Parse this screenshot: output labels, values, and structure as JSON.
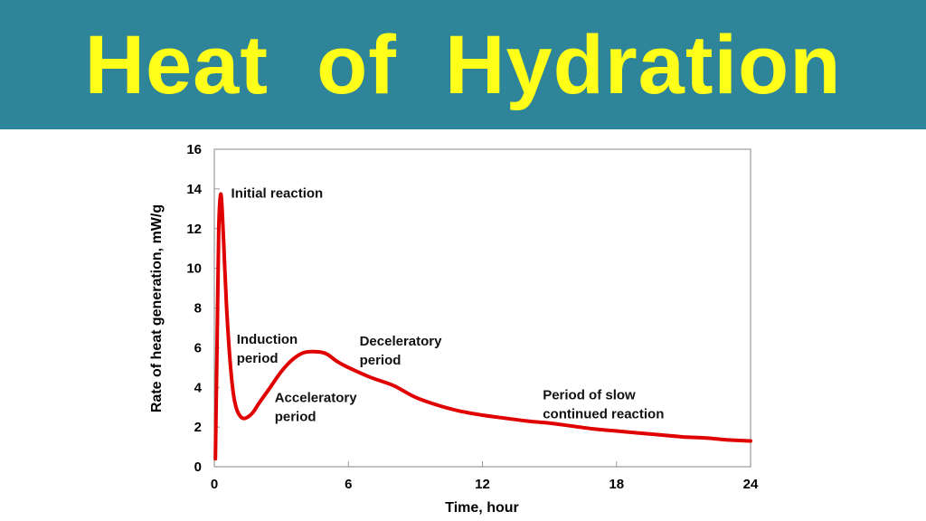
{
  "header": {
    "title": "Heat  of  Hydration",
    "background": "#2e8498",
    "text_color": "#ffff1a"
  },
  "chart_data": {
    "type": "line",
    "title": "",
    "xlabel": "Time, hour",
    "ylabel": "Rate of heat generation, mW/g",
    "xlim": [
      0,
      24
    ],
    "ylim": [
      0,
      16
    ],
    "xticks": [
      0,
      6,
      12,
      18,
      24
    ],
    "yticks": [
      0,
      2,
      4,
      6,
      8,
      10,
      12,
      14,
      16
    ],
    "grid": false,
    "series": [
      {
        "color": "#e00000",
        "x": [
          0.05,
          0.12,
          0.2,
          0.28,
          0.35,
          0.45,
          0.55,
          0.7,
          0.85,
          1.0,
          1.2,
          1.4,
          1.7,
          2.0,
          2.5,
          3.0,
          3.5,
          4.0,
          4.5,
          5.0,
          5.5,
          6.0,
          7.0,
          8.0,
          9.0,
          10.0,
          11.0,
          12.0,
          13.0,
          14.0,
          15.0,
          16.0,
          17.0,
          18.0,
          19.0,
          20.0,
          21.0,
          22.0,
          23.0,
          24.0
        ],
        "y": [
          0.4,
          6.0,
          12.0,
          13.7,
          13.0,
          10.5,
          8.0,
          5.4,
          3.7,
          2.9,
          2.5,
          2.45,
          2.7,
          3.2,
          4.0,
          4.8,
          5.4,
          5.75,
          5.8,
          5.7,
          5.3,
          5.0,
          4.5,
          4.1,
          3.5,
          3.1,
          2.8,
          2.6,
          2.45,
          2.3,
          2.2,
          2.05,
          1.9,
          1.8,
          1.7,
          1.6,
          1.5,
          1.45,
          1.35,
          1.3
        ]
      }
    ],
    "annotations": [
      {
        "lines": [
          "Initial reaction"
        ],
        "x": 0.75,
        "y": 13.55
      },
      {
        "lines": [
          "Induction",
          "period"
        ],
        "x": 1.0,
        "y": 6.2
      },
      {
        "lines": [
          "Acceleratory",
          "period"
        ],
        "x": 2.7,
        "y": 3.25
      },
      {
        "lines": [
          "Deceleratory",
          "period"
        ],
        "x": 6.5,
        "y": 6.1
      },
      {
        "lines": [
          "Period of slow",
          "continued reaction"
        ],
        "x": 14.7,
        "y": 3.4
      }
    ]
  }
}
